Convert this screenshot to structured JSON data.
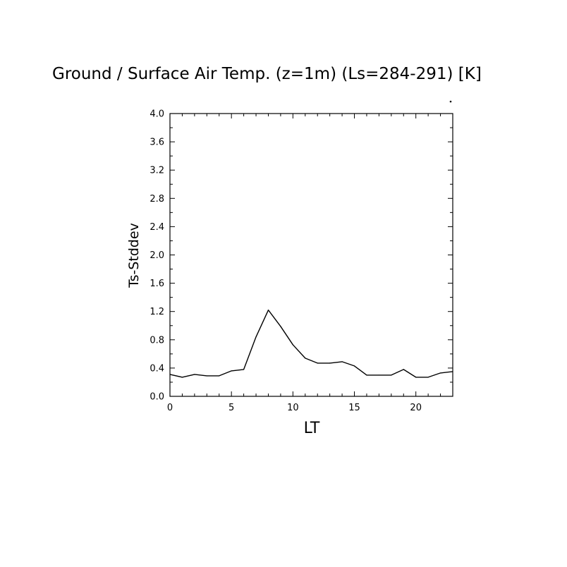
{
  "chart_data": {
    "type": "line",
    "title": "Ground / Surface Air Temp. (z=1m) (Ls=284-291) [K]",
    "xlabel": "LT",
    "ylabel": "Ts-Stddev",
    "xlim": [
      0,
      23
    ],
    "ylim": [
      0.0,
      4.0
    ],
    "x_ticks": [
      0,
      5,
      10,
      15,
      20
    ],
    "x_tick_labels": [
      "0",
      "5",
      "10",
      "15",
      "20"
    ],
    "y_ticks": [
      0.0,
      0.4,
      0.8,
      1.2,
      1.6,
      2.0,
      2.4,
      2.8,
      3.2,
      3.6,
      4.0
    ],
    "y_tick_labels": [
      "0.0",
      "0.4",
      "0.8",
      "1.2",
      "1.6",
      "2.0",
      "2.4",
      "2.8",
      "3.2",
      "3.6",
      "4.0"
    ],
    "grid": false,
    "line_color": "#000000",
    "series": [
      {
        "x": [
          0,
          1,
          2,
          3,
          4,
          5,
          6,
          7,
          8,
          9,
          10,
          11,
          12,
          13,
          14,
          15,
          16,
          17,
          18,
          19,
          20,
          21,
          22,
          23
        ],
        "values": [
          0.31,
          0.27,
          0.31,
          0.29,
          0.29,
          0.36,
          0.38,
          0.84,
          1.22,
          0.99,
          0.73,
          0.54,
          0.47,
          0.47,
          0.49,
          0.43,
          0.3,
          0.3,
          0.3,
          0.38,
          0.27,
          0.27,
          0.33,
          0.35
        ]
      }
    ]
  }
}
